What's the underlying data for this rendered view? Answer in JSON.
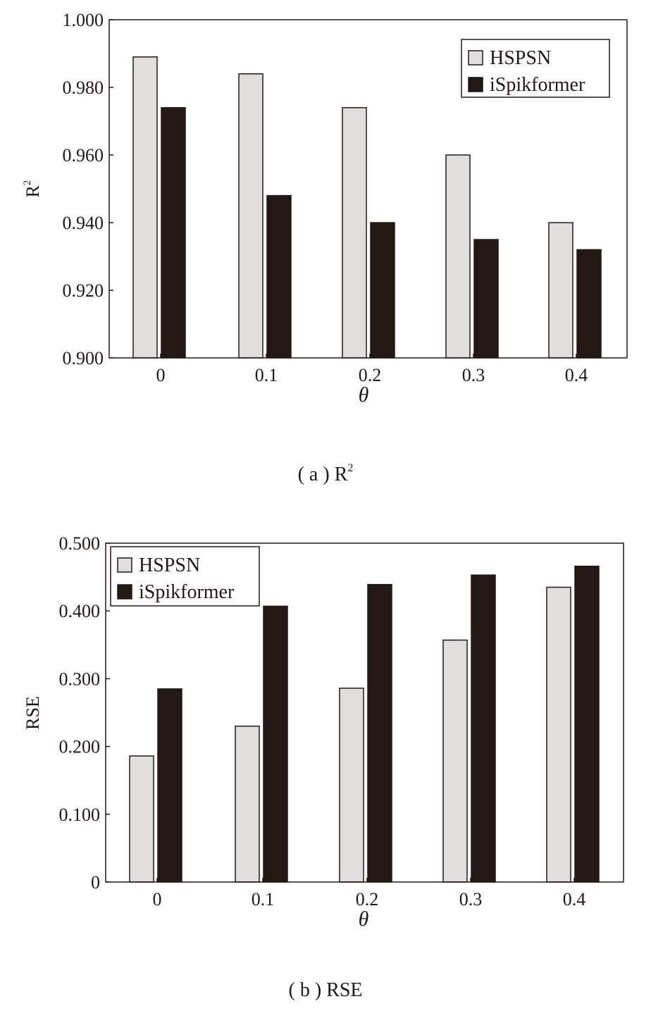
{
  "colors": {
    "hspsn": "#e0dfdd",
    "ispikformer": "#231815",
    "stroke": "#231815"
  },
  "chart_data": [
    {
      "type": "bar",
      "caption": "( a ) R",
      "caption_sup": "2",
      "ylabel": "R",
      "ylabel_sup": "2",
      "xlabel": "θ",
      "categories": [
        "0",
        "0.1",
        "0.2",
        "0.3",
        "0.4"
      ],
      "ylim": [
        0.9,
        1.0
      ],
      "yticks": [
        "0.900",
        "0.920",
        "0.940",
        "0.960",
        "0.980",
        "1.000"
      ],
      "legend": "top-right",
      "series": [
        {
          "name": "HSPSN",
          "values": [
            0.989,
            0.984,
            0.974,
            0.96,
            0.94
          ]
        },
        {
          "name": "iSpikformer",
          "values": [
            0.974,
            0.948,
            0.94,
            0.935,
            0.932
          ]
        }
      ]
    },
    {
      "type": "bar",
      "caption": "( b ) RSE",
      "ylabel": "RSE",
      "xlabel": "θ",
      "categories": [
        "0",
        "0.1",
        "0.2",
        "0.3",
        "0.4"
      ],
      "ylim": [
        0,
        0.5
      ],
      "yticks": [
        "0",
        "0.100",
        "0.200",
        "0.300",
        "0.400",
        "0.500"
      ],
      "legend": "top-left",
      "series": [
        {
          "name": "HSPSN",
          "values": [
            0.186,
            0.23,
            0.286,
            0.357,
            0.435
          ]
        },
        {
          "name": "iSpikformer",
          "values": [
            0.285,
            0.407,
            0.439,
            0.453,
            0.466
          ]
        }
      ]
    }
  ]
}
